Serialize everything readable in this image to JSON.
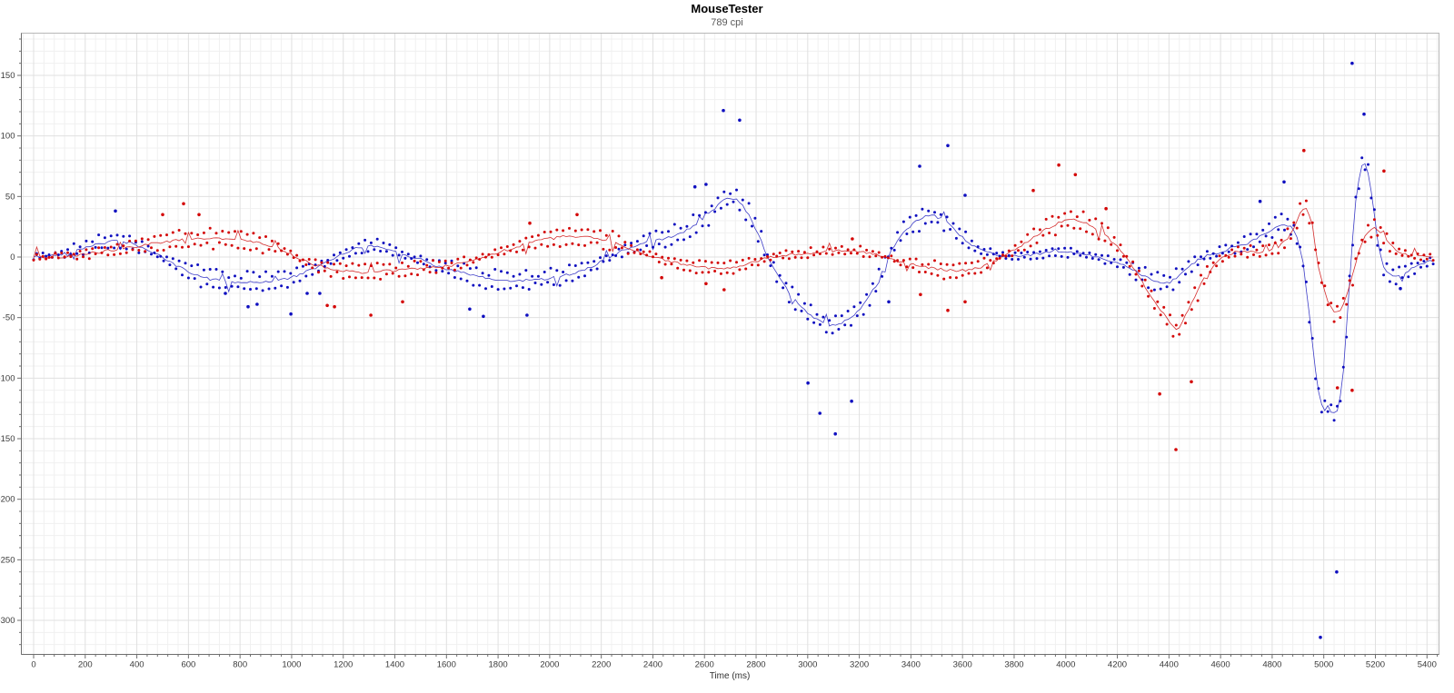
{
  "window": {
    "title": "MouseTester",
    "subtitle": "789 cpi"
  },
  "chart_data": {
    "type": "scatter",
    "title": "MouseTester",
    "subtitle": "789 cpi",
    "xlabel": "Time (ms)",
    "ylabel": "",
    "x_ticks": [
      0,
      200,
      400,
      600,
      800,
      1000,
      1200,
      1400,
      1600,
      1800,
      2000,
      2200,
      2400,
      2600,
      2800,
      3000,
      3200,
      3400,
      3600,
      3800,
      4000,
      4200,
      4400,
      4600,
      4800,
      5000,
      5200,
      5400
    ],
    "y_ticks": [
      150,
      100,
      50,
      0,
      -50,
      -100,
      -150,
      -200,
      -250,
      -300
    ],
    "x_minor_step": 40,
    "y_minor_step": 10,
    "xlim": [
      -49,
      5446
    ],
    "ylim": [
      -328,
      185
    ],
    "grid": true,
    "legend_position": "none",
    "colors": {
      "blue_dot": "#0f0fc0",
      "blue_line": "#2a2ac2",
      "red_dot": "#d40808",
      "red_line": "#d01818",
      "grid_minor": "#f0f0f0",
      "grid_major": "#e0e0e0",
      "axis": "#6e6e6e",
      "border": "#b8b8b8"
    },
    "sampling": {
      "step_ms": 12,
      "dot_radius": 1.5,
      "outlier_radius": 1.8,
      "noise_seed": 42,
      "band_amplitude": 4.5,
      "jitter": 1.5,
      "line_jitter": 1.1,
      "line_spike_chance": 0.05
    },
    "series": [
      {
        "name": "blue",
        "waypoints": [
          [
            0,
            0
          ],
          [
            60,
            1
          ],
          [
            120,
            3
          ],
          [
            180,
            7
          ],
          [
            250,
            11
          ],
          [
            310,
            13
          ],
          [
            370,
            12
          ],
          [
            420,
            8
          ],
          [
            470,
            3
          ],
          [
            520,
            -3
          ],
          [
            570,
            -9
          ],
          [
            620,
            -14
          ],
          [
            680,
            -18
          ],
          [
            740,
            -20
          ],
          [
            800,
            -21
          ],
          [
            860,
            -21
          ],
          [
            920,
            -20
          ],
          [
            980,
            -18
          ],
          [
            1040,
            -14
          ],
          [
            1100,
            -8
          ],
          [
            1160,
            -2
          ],
          [
            1220,
            5
          ],
          [
            1280,
            9
          ],
          [
            1330,
            9
          ],
          [
            1380,
            6
          ],
          [
            1440,
            2
          ],
          [
            1500,
            -2
          ],
          [
            1560,
            -7
          ],
          [
            1620,
            -11
          ],
          [
            1680,
            -14
          ],
          [
            1740,
            -17
          ],
          [
            1800,
            -19
          ],
          [
            1860,
            -20
          ],
          [
            1920,
            -19
          ],
          [
            1980,
            -18
          ],
          [
            2040,
            -16
          ],
          [
            2100,
            -13
          ],
          [
            2160,
            -8
          ],
          [
            2220,
            -2
          ],
          [
            2280,
            5
          ],
          [
            2340,
            10
          ],
          [
            2400,
            13
          ],
          [
            2460,
            16
          ],
          [
            2520,
            21
          ],
          [
            2570,
            27
          ],
          [
            2620,
            36
          ],
          [
            2660,
            45
          ],
          [
            2690,
            50
          ],
          [
            2730,
            47
          ],
          [
            2770,
            36
          ],
          [
            2810,
            18
          ],
          [
            2850,
            -2
          ],
          [
            2890,
            -18
          ],
          [
            2930,
            -30
          ],
          [
            2970,
            -40
          ],
          [
            3010,
            -48
          ],
          [
            3050,
            -53
          ],
          [
            3090,
            -57
          ],
          [
            3130,
            -55
          ],
          [
            3170,
            -50
          ],
          [
            3210,
            -42
          ],
          [
            3250,
            -28
          ],
          [
            3290,
            -10
          ],
          [
            3330,
            8
          ],
          [
            3370,
            20
          ],
          [
            3410,
            28
          ],
          [
            3450,
            33
          ],
          [
            3490,
            34
          ],
          [
            3530,
            30
          ],
          [
            3570,
            22
          ],
          [
            3610,
            14
          ],
          [
            3650,
            8
          ],
          [
            3700,
            4
          ],
          [
            3760,
            1
          ],
          [
            3820,
            1
          ],
          [
            3880,
            2
          ],
          [
            3940,
            4
          ],
          [
            4000,
            4
          ],
          [
            4060,
            3
          ],
          [
            4120,
            0
          ],
          [
            4180,
            -3
          ],
          [
            4240,
            -8
          ],
          [
            4300,
            -15
          ],
          [
            4350,
            -20
          ],
          [
            4400,
            -21
          ],
          [
            4450,
            -14
          ],
          [
            4500,
            -4
          ],
          [
            4550,
            2
          ],
          [
            4600,
            4
          ],
          [
            4650,
            7
          ],
          [
            4700,
            11
          ],
          [
            4750,
            17
          ],
          [
            4800,
            23
          ],
          [
            4840,
            27
          ],
          [
            4870,
            26
          ],
          [
            4900,
            15
          ],
          [
            4920,
            -5
          ],
          [
            4940,
            -40
          ],
          [
            4960,
            -80
          ],
          [
            4980,
            -112
          ],
          [
            5000,
            -128
          ],
          [
            5015,
            -122
          ],
          [
            5035,
            -130
          ],
          [
            5055,
            -126
          ],
          [
            5075,
            -100
          ],
          [
            5090,
            -55
          ],
          [
            5105,
            -5
          ],
          [
            5120,
            40
          ],
          [
            5140,
            70
          ],
          [
            5155,
            79
          ],
          [
            5170,
            72
          ],
          [
            5190,
            45
          ],
          [
            5210,
            12
          ],
          [
            5230,
            -8
          ],
          [
            5250,
            -14
          ],
          [
            5270,
            -16
          ],
          [
            5290,
            -15
          ],
          [
            5310,
            -13
          ],
          [
            5330,
            -11
          ],
          [
            5350,
            -9
          ],
          [
            5370,
            -7
          ],
          [
            5400,
            -4
          ],
          [
            5430,
            -3
          ]
        ],
        "outliers": [
          [
            317,
            38
          ],
          [
            743,
            -30
          ],
          [
            831,
            -41
          ],
          [
            866,
            -39
          ],
          [
            997,
            -47
          ],
          [
            1060,
            -30
          ],
          [
            1109,
            -30
          ],
          [
            1690,
            -43
          ],
          [
            1743,
            -49
          ],
          [
            1912,
            -48
          ],
          [
            2563,
            58
          ],
          [
            2606,
            60
          ],
          [
            2673,
            121
          ],
          [
            2736,
            113
          ],
          [
            3001,
            -104
          ],
          [
            3047,
            -129
          ],
          [
            3107,
            -146
          ],
          [
            3170,
            -119
          ],
          [
            3314,
            -37
          ],
          [
            3434,
            75
          ],
          [
            3543,
            92
          ],
          [
            3610,
            51
          ],
          [
            4753,
            46
          ],
          [
            4846,
            62
          ],
          [
            4987,
            -314
          ],
          [
            5050,
            -260
          ],
          [
            5110,
            160
          ],
          [
            5156,
            118
          ],
          [
            5297,
            -26
          ]
        ]
      },
      {
        "name": "red",
        "waypoints": [
          [
            0,
            0
          ],
          [
            100,
            0
          ],
          [
            160,
            1
          ],
          [
            220,
            3
          ],
          [
            280,
            5
          ],
          [
            340,
            7
          ],
          [
            400,
            9
          ],
          [
            460,
            11
          ],
          [
            520,
            13
          ],
          [
            580,
            14
          ],
          [
            640,
            15
          ],
          [
            700,
            15
          ],
          [
            760,
            15
          ],
          [
            820,
            14
          ],
          [
            880,
            12
          ],
          [
            940,
            8
          ],
          [
            1000,
            2
          ],
          [
            1050,
            -3
          ],
          [
            1100,
            -7
          ],
          [
            1160,
            -10
          ],
          [
            1220,
            -12
          ],
          [
            1280,
            -13
          ],
          [
            1340,
            -12
          ],
          [
            1400,
            -11
          ],
          [
            1460,
            -10
          ],
          [
            1520,
            -9
          ],
          [
            1580,
            -8
          ],
          [
            1640,
            -6
          ],
          [
            1700,
            -3
          ],
          [
            1760,
            1
          ],
          [
            1820,
            5
          ],
          [
            1880,
            9
          ],
          [
            1940,
            13
          ],
          [
            2000,
            15
          ],
          [
            2060,
            17
          ],
          [
            2120,
            17
          ],
          [
            2180,
            16
          ],
          [
            2240,
            13
          ],
          [
            2300,
            8
          ],
          [
            2360,
            3
          ],
          [
            2420,
            -1
          ],
          [
            2470,
            -4
          ],
          [
            2520,
            -6
          ],
          [
            2570,
            -8
          ],
          [
            2620,
            -9
          ],
          [
            2680,
            -9
          ],
          [
            2740,
            -7
          ],
          [
            2790,
            -4
          ],
          [
            2840,
            -1
          ],
          [
            2890,
            1
          ],
          [
            2940,
            2
          ],
          [
            3000,
            3
          ],
          [
            3060,
            4
          ],
          [
            3120,
            5
          ],
          [
            3180,
            5
          ],
          [
            3240,
            3
          ],
          [
            3300,
            0
          ],
          [
            3360,
            -4
          ],
          [
            3420,
            -7
          ],
          [
            3480,
            -9
          ],
          [
            3540,
            -11
          ],
          [
            3600,
            -11
          ],
          [
            3660,
            -9
          ],
          [
            3710,
            -5
          ],
          [
            3760,
            1
          ],
          [
            3810,
            7
          ],
          [
            3860,
            14
          ],
          [
            3910,
            21
          ],
          [
            3960,
            27
          ],
          [
            4010,
            31
          ],
          [
            4060,
            30
          ],
          [
            4110,
            25
          ],
          [
            4160,
            17
          ],
          [
            4210,
            6
          ],
          [
            4260,
            -8
          ],
          [
            4310,
            -25
          ],
          [
            4360,
            -42
          ],
          [
            4400,
            -53
          ],
          [
            4433,
            -62
          ],
          [
            4460,
            -50
          ],
          [
            4500,
            -33
          ],
          [
            4540,
            -16
          ],
          [
            4580,
            -5
          ],
          [
            4620,
            1
          ],
          [
            4660,
            4
          ],
          [
            4700,
            5
          ],
          [
            4740,
            4
          ],
          [
            4780,
            5
          ],
          [
            4820,
            8
          ],
          [
            4860,
            15
          ],
          [
            4890,
            26
          ],
          [
            4915,
            39
          ],
          [
            4928,
            42
          ],
          [
            4945,
            34
          ],
          [
            4960,
            18
          ],
          [
            4980,
            -8
          ],
          [
            5000,
            -26
          ],
          [
            5020,
            -39
          ],
          [
            5040,
            -46
          ],
          [
            5060,
            -45
          ],
          [
            5080,
            -38
          ],
          [
            5100,
            -24
          ],
          [
            5120,
            -8
          ],
          [
            5140,
            7
          ],
          [
            5160,
            17
          ],
          [
            5180,
            23
          ],
          [
            5200,
            25
          ],
          [
            5220,
            20
          ],
          [
            5240,
            14
          ],
          [
            5260,
            9
          ],
          [
            5280,
            6
          ],
          [
            5300,
            3
          ],
          [
            5320,
            2
          ],
          [
            5340,
            1
          ],
          [
            5360,
            1
          ],
          [
            5380,
            0
          ],
          [
            5430,
            0
          ]
        ],
        "outliers": [
          [
            500,
            35
          ],
          [
            581,
            44
          ],
          [
            641,
            35
          ],
          [
            1138,
            -40
          ],
          [
            1166,
            -41
          ],
          [
            1307,
            -48
          ],
          [
            1430,
            -37
          ],
          [
            1923,
            28
          ],
          [
            2106,
            35
          ],
          [
            2434,
            -17
          ],
          [
            2606,
            -22
          ],
          [
            2676,
            -27
          ],
          [
            3173,
            15
          ],
          [
            3437,
            -31
          ],
          [
            3543,
            -44
          ],
          [
            3610,
            -37
          ],
          [
            3874,
            55
          ],
          [
            3973,
            76
          ],
          [
            4037,
            68
          ],
          [
            4156,
            40
          ],
          [
            4364,
            -113
          ],
          [
            4427,
            -159
          ],
          [
            4487,
            -103
          ],
          [
            4923,
            88
          ],
          [
            5053,
            -108
          ],
          [
            5110,
            -110
          ],
          [
            5233,
            71
          ]
        ]
      }
    ]
  }
}
